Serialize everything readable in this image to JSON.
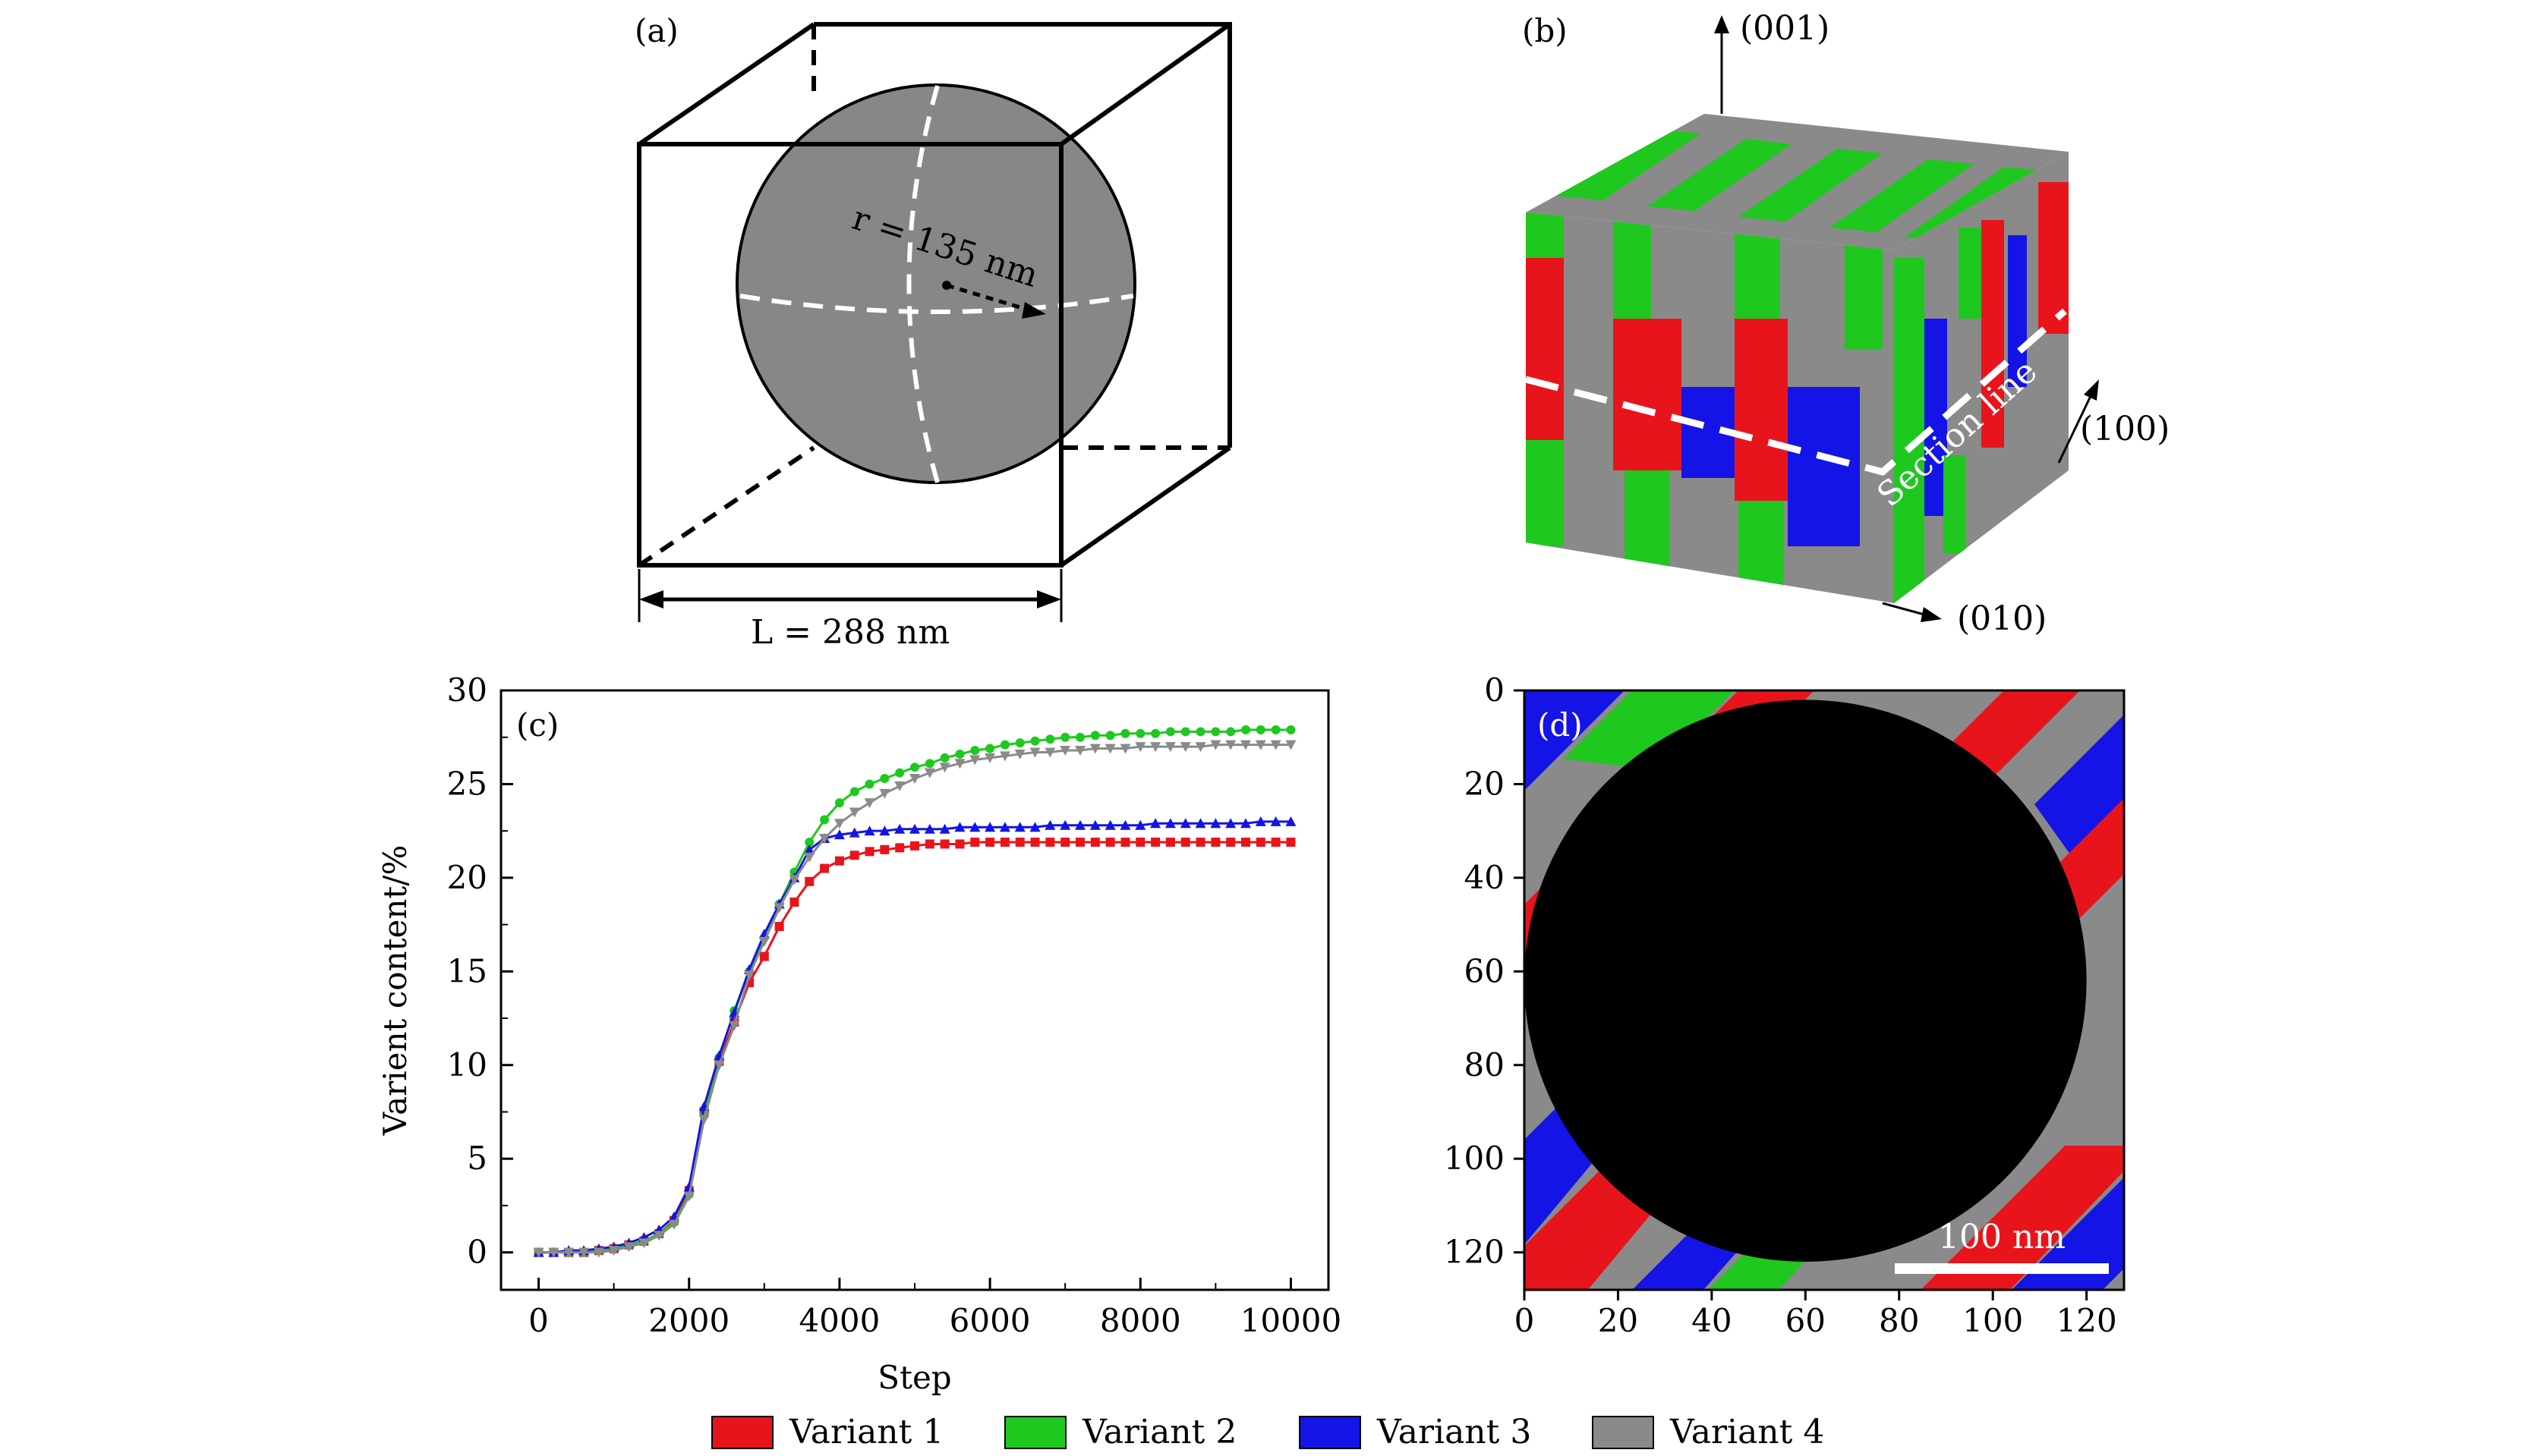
{
  "panels": {
    "a": {
      "label": "(a)",
      "radius_label": "r = 135 nm",
      "length_label": "L = 288 nm"
    },
    "b": {
      "label": "(b)",
      "axis_001": "(001)",
      "axis_100": "(100)",
      "axis_010": "(010)",
      "section_label": "Section line"
    },
    "c": {
      "label": "(c)"
    },
    "d": {
      "label": "(d)",
      "scale_bar": "100 nm"
    }
  },
  "colors": {
    "variant1": "#e8141c",
    "variant2": "#1ec81e",
    "variant3": "#1414e6",
    "variant4": "#8a8a8a"
  },
  "legend": [
    {
      "name": "Variant 1",
      "color": "#e8141c"
    },
    {
      "name": "Variant 2",
      "color": "#1ec81e"
    },
    {
      "name": "Variant 3",
      "color": "#1414e6"
    },
    {
      "name": "Variant 4",
      "color": "#8a8a8a"
    }
  ],
  "chart_data": [
    {
      "type": "line",
      "panel": "(c)",
      "xlabel": "Step",
      "ylabel": "Varient content/%",
      "xlim": [
        -500,
        10500
      ],
      "ylim": [
        -2,
        30
      ],
      "xticks": [
        0,
        2000,
        4000,
        6000,
        8000,
        10000
      ],
      "yticks": [
        0,
        5,
        10,
        15,
        20,
        25,
        30
      ],
      "x": [
        0,
        200,
        400,
        600,
        800,
        1000,
        1200,
        1400,
        1600,
        1800,
        2000,
        2200,
        2400,
        2600,
        2800,
        3000,
        3200,
        3400,
        3600,
        3800,
        4000,
        4200,
        4400,
        4600,
        4800,
        5000,
        5200,
        5400,
        5600,
        5800,
        6000,
        6200,
        6400,
        6600,
        6800,
        7000,
        7200,
        7400,
        7600,
        7800,
        8000,
        8200,
        8400,
        8600,
        8800,
        9000,
        9200,
        9400,
        9600,
        9800,
        10000
      ],
      "series": [
        {
          "name": "Variant 1",
          "color": "#e8141c",
          "marker": "square",
          "values": [
            0,
            0,
            0,
            0,
            0.1,
            0.2,
            0.4,
            0.6,
            1.0,
            1.7,
            3.3,
            7.5,
            10.2,
            12.3,
            14.4,
            15.8,
            17.4,
            18.7,
            19.8,
            20.5,
            20.9,
            21.2,
            21.4,
            21.5,
            21.6,
            21.7,
            21.8,
            21.8,
            21.8,
            21.9,
            21.9,
            21.9,
            21.9,
            21.9,
            21.9,
            21.9,
            21.9,
            21.9,
            21.9,
            21.9,
            21.9,
            21.9,
            21.9,
            21.9,
            21.9,
            21.9,
            21.9,
            21.9,
            21.9,
            21.9,
            21.9
          ]
        },
        {
          "name": "Variant 2",
          "color": "#1ec81e",
          "marker": "circle",
          "values": [
            0,
            0,
            0,
            0,
            0.1,
            0.2,
            0.4,
            0.6,
            1.0,
            1.6,
            3.1,
            7.3,
            10.4,
            12.9,
            15.0,
            16.8,
            18.6,
            20.3,
            21.9,
            23.1,
            24.0,
            24.6,
            25.0,
            25.3,
            25.6,
            25.9,
            26.1,
            26.4,
            26.6,
            26.8,
            26.9,
            27.1,
            27.2,
            27.3,
            27.4,
            27.5,
            27.5,
            27.6,
            27.6,
            27.7,
            27.7,
            27.7,
            27.8,
            27.8,
            27.8,
            27.8,
            27.8,
            27.9,
            27.9,
            27.9,
            27.9
          ]
        },
        {
          "name": "Variant 3",
          "color": "#1414e6",
          "marker": "triangle",
          "values": [
            0,
            0,
            0.1,
            0.1,
            0.2,
            0.3,
            0.5,
            0.8,
            1.2,
            1.9,
            3.5,
            7.8,
            10.5,
            12.8,
            15.1,
            17.0,
            18.6,
            20.0,
            21.5,
            22.1,
            22.3,
            22.4,
            22.5,
            22.5,
            22.6,
            22.6,
            22.6,
            22.6,
            22.7,
            22.7,
            22.7,
            22.7,
            22.7,
            22.7,
            22.8,
            22.8,
            22.8,
            22.8,
            22.8,
            22.8,
            22.8,
            22.9,
            22.9,
            22.9,
            22.9,
            22.9,
            22.9,
            22.9,
            23.0,
            23.0,
            23.0
          ]
        },
        {
          "name": "Variant 4",
          "color": "#8a8a8a",
          "marker": "triangle-down",
          "values": [
            0,
            0,
            0,
            0,
            0,
            0.1,
            0.3,
            0.5,
            0.9,
            1.5,
            3.0,
            7.1,
            10.0,
            12.1,
            14.8,
            16.6,
            18.4,
            19.9,
            21.1,
            22.1,
            22.9,
            23.5,
            24.0,
            24.5,
            24.9,
            25.3,
            25.6,
            25.9,
            26.1,
            26.3,
            26.4,
            26.5,
            26.6,
            26.7,
            26.7,
            26.8,
            26.8,
            26.9,
            26.9,
            26.9,
            27.0,
            27.0,
            27.0,
            27.0,
            27.0,
            27.1,
            27.1,
            27.1,
            27.1,
            27.1,
            27.1
          ]
        }
      ]
    },
    {
      "type": "heatmap",
      "panel": "(d)",
      "xlim": [
        0,
        128
      ],
      "ylim": [
        128,
        0
      ],
      "xticks": [
        0,
        20,
        40,
        60,
        80,
        100,
        120
      ],
      "yticks": [
        0,
        20,
        40,
        60,
        80,
        100,
        120
      ],
      "particle_center": [
        60,
        62
      ],
      "particle_radius": 60
    }
  ]
}
